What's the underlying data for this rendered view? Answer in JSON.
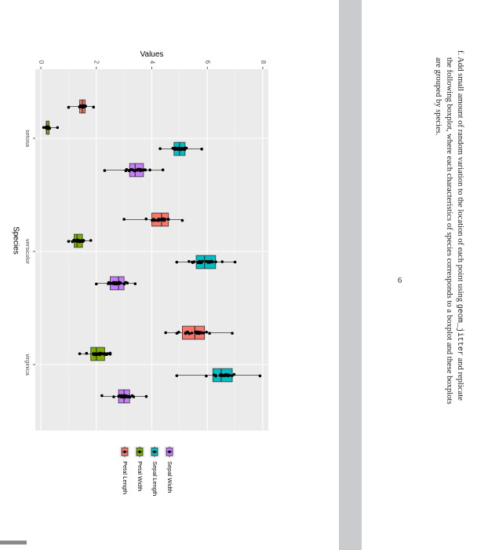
{
  "document": {
    "exercise": {
      "label": "f.",
      "lines": [
        {
          "before": "Add small amount of random variation to the location of each point using ",
          "code": "geom_jitter",
          "after": " and replicate"
        },
        {
          "before": "the following boxplot, where each characteristics of species corresponds to a boxplot and these boxplots",
          "code": "",
          "after": ""
        },
        {
          "before": "are grouped by species.",
          "code": "",
          "after": ""
        }
      ]
    },
    "page_number": "6"
  },
  "chart_data": {
    "type": "boxplot",
    "orientation": "rotated-90-clockwise",
    "xlabel": "Species",
    "ylabel": "Values",
    "categories": [
      "setosa",
      "versicolor",
      "virginica"
    ],
    "ylim": [
      -0.2,
      8.2
    ],
    "yticks": [
      0,
      2,
      4,
      6,
      8
    ],
    "grid": true,
    "legend_position": "bottom-of-page",
    "series": [
      {
        "name": "Petal Length",
        "color": "#F8766D",
        "boxes": [
          {
            "min": 1.0,
            "q1": 1.4,
            "median": 1.5,
            "q3": 1.6,
            "max": 1.9
          },
          {
            "min": 3.0,
            "q1": 4.0,
            "median": 4.35,
            "q3": 4.6,
            "max": 5.1
          },
          {
            "min": 4.5,
            "q1": 5.1,
            "median": 5.55,
            "q3": 5.9,
            "max": 6.9
          }
        ]
      },
      {
        "name": "Petal Width",
        "color": "#7CAE00",
        "boxes": [
          {
            "min": 0.1,
            "q1": 0.2,
            "median": 0.2,
            "q3": 0.3,
            "max": 0.6
          },
          {
            "min": 1.0,
            "q1": 1.2,
            "median": 1.3,
            "q3": 1.5,
            "max": 1.8
          },
          {
            "min": 1.4,
            "q1": 1.8,
            "median": 2.0,
            "q3": 2.3,
            "max": 2.5
          }
        ]
      },
      {
        "name": "Sepal Length",
        "color": "#00BFC4",
        "boxes": [
          {
            "min": 4.3,
            "q1": 4.8,
            "median": 5.0,
            "q3": 5.2,
            "max": 5.8
          },
          {
            "min": 4.9,
            "q1": 5.6,
            "median": 5.9,
            "q3": 6.3,
            "max": 7.0
          },
          {
            "min": 4.9,
            "q1": 6.2,
            "median": 6.5,
            "q3": 6.9,
            "max": 7.9
          }
        ]
      },
      {
        "name": "Sepal Width",
        "color": "#C77CFF",
        "boxes": [
          {
            "min": 2.3,
            "q1": 3.2,
            "median": 3.4,
            "q3": 3.7,
            "max": 4.4
          },
          {
            "min": 2.0,
            "q1": 2.5,
            "median": 2.8,
            "q3": 3.0,
            "max": 3.4
          },
          {
            "min": 2.2,
            "q1": 2.8,
            "median": 3.0,
            "q3": 3.2,
            "max": 3.8
          }
        ]
      }
    ],
    "legend": [
      "Petal Length",
      "Petal Width",
      "Sepal Length",
      "Sepal Width"
    ]
  }
}
